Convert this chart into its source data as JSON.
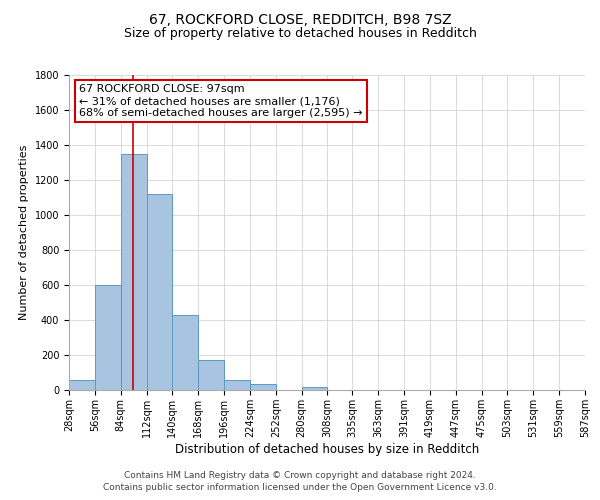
{
  "title": "67, ROCKFORD CLOSE, REDDITCH, B98 7SZ",
  "subtitle": "Size of property relative to detached houses in Redditch",
  "xlabel": "Distribution of detached houses by size in Redditch",
  "ylabel": "Number of detached properties",
  "bar_values": [
    60,
    600,
    1350,
    1120,
    430,
    170,
    60,
    35,
    0,
    20,
    0,
    0,
    0,
    0,
    0,
    0,
    0,
    0,
    0,
    0
  ],
  "bin_edges": [
    28,
    56,
    84,
    112,
    140,
    168,
    196,
    224,
    252,
    280,
    308,
    335,
    363,
    391,
    419,
    447,
    475,
    503,
    531,
    559,
    587
  ],
  "bin_labels": [
    "28sqm",
    "56sqm",
    "84sqm",
    "112sqm",
    "140sqm",
    "168sqm",
    "196sqm",
    "224sqm",
    "252sqm",
    "280sqm",
    "308sqm",
    "335sqm",
    "363sqm",
    "391sqm",
    "419sqm",
    "447sqm",
    "475sqm",
    "503sqm",
    "531sqm",
    "559sqm",
    "587sqm"
  ],
  "bar_color": "#a8c4e0",
  "bar_edge_color": "#5a9abf",
  "vline_x": 97,
  "vline_color": "#cc0000",
  "annotation_line1": "67 ROCKFORD CLOSE: 97sqm",
  "annotation_line2": "← 31% of detached houses are smaller (1,176)",
  "annotation_line3": "68% of semi-detached houses are larger (2,595) →",
  "box_edge_color": "#cc0000",
  "ylim": [
    0,
    1800
  ],
  "yticks": [
    0,
    200,
    400,
    600,
    800,
    1000,
    1200,
    1400,
    1600,
    1800
  ],
  "background_color": "#ffffff",
  "grid_color": "#cccccc",
  "footnote1": "Contains HM Land Registry data © Crown copyright and database right 2024.",
  "footnote2": "Contains public sector information licensed under the Open Government Licence v3.0.",
  "title_fontsize": 10,
  "subtitle_fontsize": 9,
  "xlabel_fontsize": 8.5,
  "ylabel_fontsize": 8,
  "tick_fontsize": 7,
  "annotation_fontsize": 8,
  "footnote_fontsize": 6.5
}
